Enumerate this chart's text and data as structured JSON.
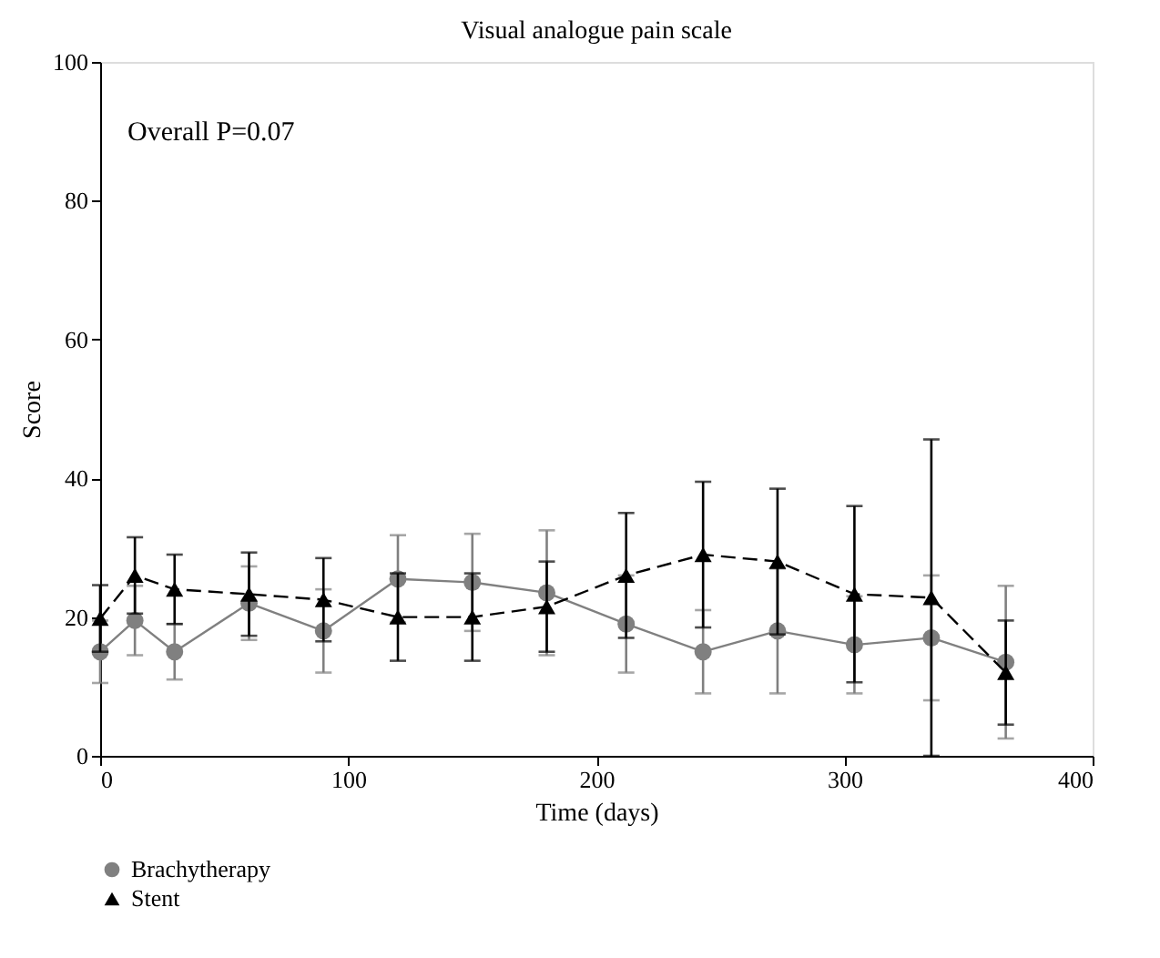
{
  "chart_data": {
    "type": "line",
    "title": "Visual analogue pain scale",
    "xlabel": "Time (days)",
    "ylabel": "Score",
    "x": [
      0,
      14,
      30,
      60,
      90,
      120,
      150,
      180,
      212,
      243,
      273,
      304,
      335,
      365
    ],
    "series": [
      {
        "name": "Brachytherapy",
        "color": "#808080",
        "marker": "circle",
        "line_style": "solid",
        "values": [
          15,
          19.5,
          15,
          22,
          18,
          25.5,
          25,
          23.5,
          19,
          15,
          18,
          16,
          17,
          13.5
        ],
        "errors": [
          4.5,
          5,
          4,
          5.3,
          6,
          6.3,
          7,
          9,
          7,
          6,
          9,
          7,
          9,
          11
        ]
      },
      {
        "name": "Stent",
        "color": "#000000",
        "marker": "triangle",
        "line_style": "dashed",
        "values": [
          19.8,
          26,
          24,
          23.3,
          22.5,
          20,
          20,
          21.5,
          26,
          29,
          28,
          23.3,
          22.8,
          12
        ],
        "errors": [
          4.8,
          5.5,
          5,
          6,
          6,
          6.3,
          6.3,
          6.5,
          9,
          10.5,
          10.5,
          12.7,
          22.8,
          7.5
        ]
      }
    ],
    "xlim": [
      0,
      400
    ],
    "xticks": [
      0,
      100,
      200,
      300,
      400
    ],
    "ylim": [
      0,
      100
    ],
    "yticks": [
      0,
      20,
      40,
      60,
      80,
      100
    ],
    "grid": false,
    "legend": "bottom left",
    "annotations": [
      "Overall P=0.07"
    ]
  }
}
